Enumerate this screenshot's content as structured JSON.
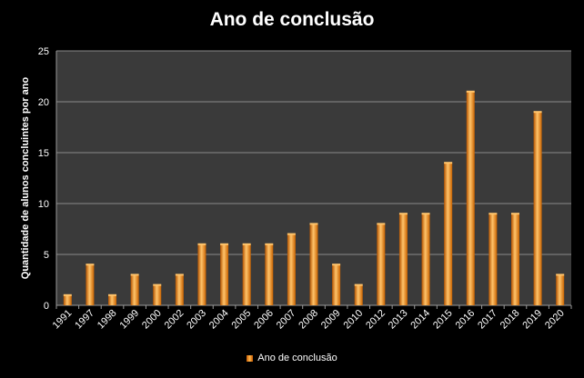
{
  "chart_data": {
    "type": "bar",
    "title": "Ano de conclusão",
    "ylabel": "Quantidade de alunos concluintes por ano",
    "xlabel": "",
    "ylim": [
      0,
      25
    ],
    "yticks": [
      0,
      5,
      10,
      15,
      20,
      25
    ],
    "categories": [
      "1991",
      "1997",
      "1998",
      "1999",
      "2000",
      "2002",
      "2003",
      "2004",
      "2005",
      "2006",
      "2007",
      "2008",
      "2009",
      "2010",
      "2012",
      "2013",
      "2014",
      "2015",
      "2016",
      "2017",
      "2018",
      "2019",
      "2020"
    ],
    "series": [
      {
        "name": "Ano de conclusão",
        "values": [
          1,
          4,
          1,
          3,
          2,
          3,
          6,
          6,
          6,
          6,
          7,
          8,
          4,
          2,
          8,
          9,
          9,
          14,
          21,
          9,
          9,
          19,
          3
        ]
      }
    ],
    "grid": true,
    "legend_position": "bottom",
    "colors": {
      "background": "#000000",
      "plot_area": "#3a3a3a",
      "grid": "#8a8a8a",
      "bar": "#f08a24",
      "bar_highlight": "#ffc46b",
      "bar_shadow": "#b55400",
      "text": "#ffffff"
    }
  }
}
